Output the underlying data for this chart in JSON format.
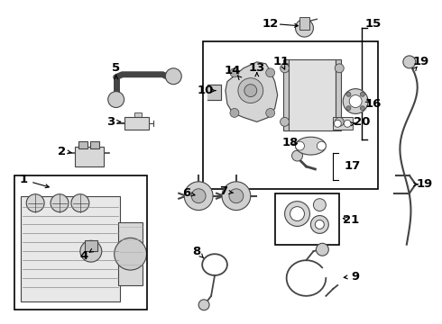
{
  "bg_color": "#ffffff",
  "fig_width": 4.9,
  "fig_height": 3.6,
  "dpi": 100,
  "label_fontsize": 9.5,
  "label_color": "black",
  "component_color": "#444444",
  "component_lw": 0.9
}
